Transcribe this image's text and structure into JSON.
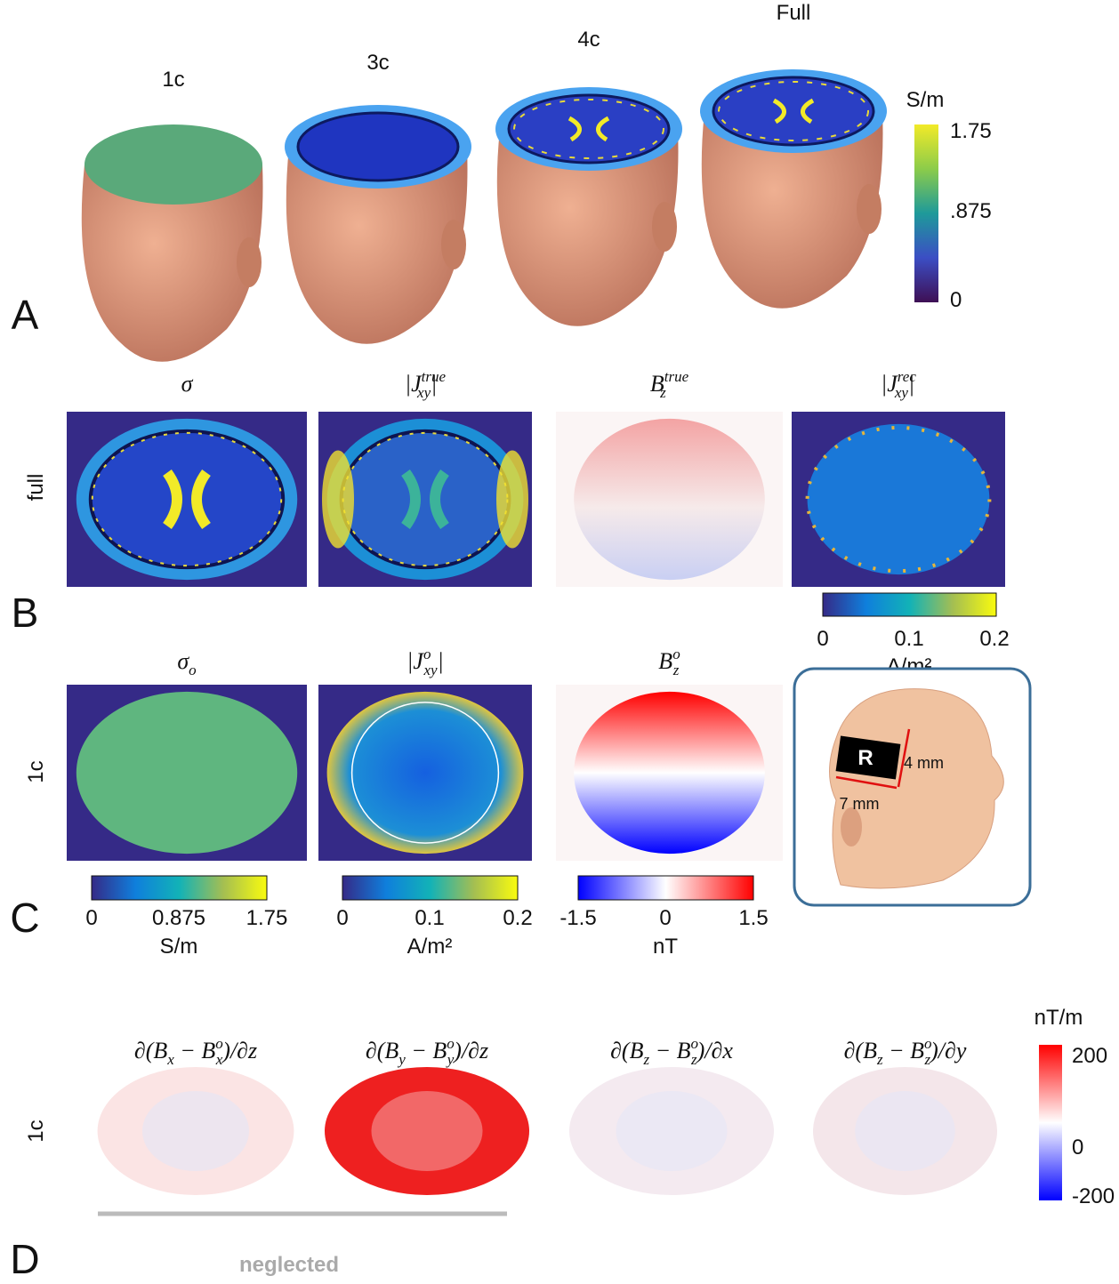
{
  "panel_a": {
    "label": "A",
    "heads": [
      "1c",
      "3c",
      "4c",
      "Full"
    ],
    "colorbar": {
      "unit": "S/m",
      "ticks": [
        "1.75",
        ".875",
        "0"
      ]
    }
  },
  "panel_b": {
    "label": "B",
    "row_label": "full",
    "titles": [
      [
        {
          "base": "σ"
        }
      ],
      [
        {
          "base": "|J"
        },
        {
          "sup": "true"
        },
        {
          "sub": "xy"
        },
        {
          "base": "|"
        }
      ],
      [
        {
          "base": "B"
        },
        {
          "sup": "true"
        },
        {
          "sub": "z"
        }
      ],
      [
        {
          "base": "|J"
        },
        {
          "sup": "rec"
        },
        {
          "sub": "xy"
        },
        {
          "base": "|"
        }
      ]
    ],
    "colorbar": {
      "ticks": [
        "0",
        "0.1",
        "0.2"
      ],
      "unit": "A/m²"
    }
  },
  "panel_c": {
    "label": "C",
    "row_label": "1c",
    "titles": [
      [
        {
          "base": "σ"
        },
        {
          "sub": "o"
        }
      ],
      [
        {
          "base": "|J"
        },
        {
          "sup": "o"
        },
        {
          "sub": "xy"
        },
        {
          "base": "|"
        }
      ],
      [
        {
          "base": "B"
        },
        {
          "sup": "o"
        },
        {
          "sub": "z"
        }
      ]
    ],
    "colorbars": [
      {
        "ticks": [
          "0",
          "0.875",
          "1.75"
        ],
        "unit": "S/m"
      },
      {
        "ticks": [
          "0",
          "0.1",
          "0.2"
        ],
        "unit": "A/m²"
      },
      {
        "ticks": [
          "-1.5",
          "0",
          "1.5"
        ],
        "unit": "nT"
      }
    ],
    "inset": {
      "electrode": "R",
      "height": "4 mm",
      "width": "7 mm"
    }
  },
  "panel_d": {
    "label": "D",
    "row_label": "1c",
    "titles": [
      [
        {
          "base": "∂(B"
        },
        {
          "sub": "x"
        },
        {
          "base": " − B"
        },
        {
          "sup": "o"
        },
        {
          "sub": "x"
        },
        {
          "base": ")/∂z"
        }
      ],
      [
        {
          "base": "∂(B"
        },
        {
          "sub": "y"
        },
        {
          "base": " − B"
        },
        {
          "sup": "o"
        },
        {
          "sub": "y"
        },
        {
          "base": ")/∂z"
        }
      ],
      [
        {
          "base": "∂(B"
        },
        {
          "sub": "z"
        },
        {
          "base": " − B"
        },
        {
          "sup": "o"
        },
        {
          "sub": "z"
        },
        {
          "base": ")/∂x"
        }
      ],
      [
        {
          "base": "∂(B"
        },
        {
          "sub": "z"
        },
        {
          "base": " − B"
        },
        {
          "sup": "o"
        },
        {
          "sub": "z"
        },
        {
          "base": ")/∂y"
        }
      ]
    ],
    "colorbar": {
      "unit": "nT/m",
      "ticks": [
        "200",
        "0",
        "-200"
      ]
    },
    "note": "neglected"
  }
}
